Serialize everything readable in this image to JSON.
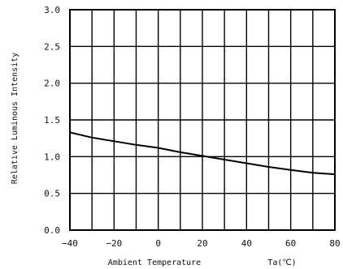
{
  "chart_data": {
    "type": "line",
    "title": "",
    "xlabel": "Ambient Temperature",
    "xunit": "Ta(℃)",
    "ylabel": "Relative Luminous Intensity",
    "xlim": [
      -40,
      80
    ],
    "ylim": [
      0.0,
      3.0
    ],
    "xticks": [
      -40,
      -20,
      0,
      20,
      40,
      60,
      80
    ],
    "xtick_labels": [
      "−40",
      "−20",
      "0",
      "20",
      "40",
      "60",
      "80"
    ],
    "yticks": [
      0.0,
      0.5,
      1.0,
      1.5,
      2.0,
      2.5,
      3.0
    ],
    "ytick_labels": [
      "0.0",
      "0.5",
      "1.0",
      "1.5",
      "2.0",
      "2.5",
      "3.0"
    ],
    "grid": true,
    "grid_x_step": 10,
    "grid_y_step": 0.5,
    "line_color": "#000000",
    "series": [
      {
        "x": [
          -40,
          -30,
          -20,
          -10,
          0,
          10,
          20,
          30,
          40,
          50,
          60,
          70,
          80
        ],
        "values": [
          1.33,
          1.26,
          1.21,
          1.16,
          1.12,
          1.06,
          1.01,
          0.96,
          0.91,
          0.86,
          0.82,
          0.78,
          0.76
        ]
      }
    ]
  }
}
